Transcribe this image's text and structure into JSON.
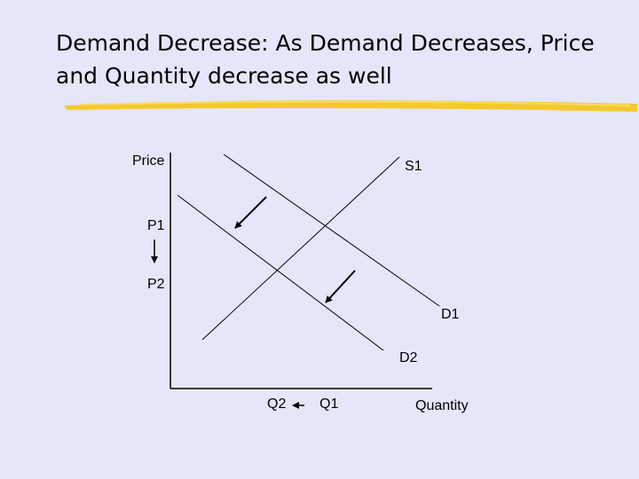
{
  "slide": {
    "title_line1": "Demand Decrease:  As Demand Decreases, Price",
    "title_line2": "and Quantity decrease as well",
    "accent_color": "#f5c518"
  },
  "diagram": {
    "y_axis_label": "Price",
    "x_axis_label": "Quantity",
    "supply_label": "S1",
    "demand_original_label": "D1",
    "demand_new_label": "D2",
    "price_original_label": "P1",
    "price_new_label": "P2",
    "quantity_original_label": "Q1",
    "quantity_new_label": "Q2"
  }
}
